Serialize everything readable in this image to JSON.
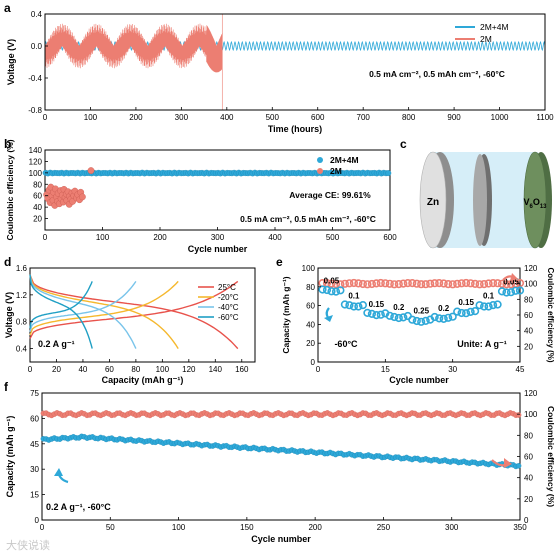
{
  "colors": {
    "blue": "#2ea8d8",
    "red": "#ec7e72",
    "c25": "#e8534c",
    "cm20": "#f5b82e",
    "cm40": "#79c4ea",
    "cm60": "#1f9fc4",
    "axis": "#000000",
    "cell_bg": "#d6eef8"
  },
  "panel_labels": {
    "a": "a",
    "b": "b",
    "c": "c",
    "d": "d",
    "e": "e",
    "f": "f"
  },
  "chart_data": [
    {
      "panel": "a",
      "type": "line",
      "xlabel": "Time (hours)",
      "ylabel": "Voltage (V)",
      "xlim": [
        0,
        1100
      ],
      "ylim": [
        -0.8,
        0.4
      ],
      "xticks": [
        0,
        100,
        200,
        300,
        400,
        500,
        600,
        700,
        800,
        900,
        1000,
        1100
      ],
      "yticks": [
        -0.8,
        -0.4,
        0.0,
        0.4
      ],
      "ytick_labels": [
        "-0.8",
        "-0.4",
        "0.0",
        "0.4"
      ],
      "annotation": "0.5 mA cm⁻², 0.5 mAh cm⁻², -60°C",
      "legend_position": "top-right",
      "series": [
        {
          "name": "2M+4M",
          "color": "#2ea8d8",
          "t_range": [
            0,
            1100
          ],
          "amplitude_V": 0.05,
          "period_hours": 8
        },
        {
          "name": "2M",
          "color": "#ec7e72",
          "t_range": [
            0,
            390
          ],
          "amplitude_V": 0.28,
          "period_hours": 3,
          "failure_hours": 390,
          "spike_peak_V": 0.3
        }
      ]
    },
    {
      "panel": "b",
      "type": "scatter",
      "xlabel": "Cycle number",
      "ylabel": "Coulombic efficiency (%)",
      "xlim": [
        0,
        600
      ],
      "ylim": [
        0,
        140
      ],
      "xticks": [
        0,
        100,
        200,
        300,
        400,
        500,
        600
      ],
      "yticks": [
        20,
        40,
        60,
        80,
        100,
        120,
        140
      ],
      "annotation_ce": "Average CE: 99.61%",
      "annotation_cond": "0.5 mA cm⁻², 0.5 mAh cm⁻², -60°C",
      "legend_position": "top-right",
      "series": [
        {
          "name": "2M+4M",
          "color": "#2ea8d8",
          "x_range": [
            1,
            600
          ],
          "ce_percent": 99.61
        },
        {
          "name": "2M",
          "color": "#ec7e72",
          "points": [
            [
              3,
              62
            ],
            [
              5,
              55
            ],
            [
              7,
              70
            ],
            [
              9,
              48
            ],
            [
              10,
              75
            ],
            [
              12,
              60
            ],
            [
              14,
              52
            ],
            [
              15,
              66
            ],
            [
              17,
              43
            ],
            [
              18,
              72
            ],
            [
              20,
              58
            ],
            [
              22,
              50
            ],
            [
              23,
              64
            ],
            [
              25,
              46
            ],
            [
              27,
              69
            ],
            [
              28,
              55
            ],
            [
              30,
              61
            ],
            [
              32,
              49
            ],
            [
              33,
              71
            ],
            [
              35,
              57
            ],
            [
              37,
              63
            ],
            [
              38,
              52
            ],
            [
              40,
              67
            ],
            [
              42,
              45
            ],
            [
              43,
              59
            ],
            [
              45,
              54
            ],
            [
              47,
              65
            ],
            [
              48,
              50
            ],
            [
              50,
              60
            ],
            [
              52,
              68
            ],
            [
              55,
              56
            ],
            [
              57,
              62
            ],
            [
              60,
              53
            ],
            [
              62,
              66
            ],
            [
              65,
              58
            ],
            [
              80,
              104
            ]
          ]
        }
      ]
    },
    {
      "panel": "c",
      "type": "schematic",
      "label_zn": "Zn",
      "label_vo_prefix": "V",
      "label_vo_sub1": "6",
      "label_vo_o": "O",
      "label_vo_sub2": "13"
    },
    {
      "panel": "d",
      "type": "line",
      "xlabel": "Capacity (mAh g⁻¹)",
      "ylabel": "Voltage (V)",
      "xlim": [
        0,
        170
      ],
      "ylim": [
        0.2,
        1.6
      ],
      "xticks": [
        0,
        20,
        40,
        60,
        80,
        100,
        120,
        140,
        160
      ],
      "yticks": [
        0.4,
        0.8,
        1.2,
        1.6
      ],
      "ytick_labels": [
        "0.4",
        "0.8",
        "1.2",
        "1.6"
      ],
      "annotation": "0.2 A g⁻¹",
      "legend_position": "top-right",
      "series": [
        {
          "name": "25°C",
          "color": "#e8534c",
          "capacity_mAh_g": 157
        },
        {
          "name": "-20°C",
          "color": "#f5b82e",
          "capacity_mAh_g": 112
        },
        {
          "name": "-40°C",
          "color": "#79c4ea",
          "capacity_mAh_g": 80
        },
        {
          "name": "-60°C",
          "color": "#1f9fc4",
          "capacity_mAh_g": 47
        }
      ]
    },
    {
      "panel": "e",
      "type": "scatter",
      "xlabel": "Cycle number",
      "ylabel": "Capacity (mAh g⁻¹)",
      "ylabel_right": "Coulombic efficiency (%)",
      "xlim": [
        0,
        45
      ],
      "ylim": [
        0,
        100
      ],
      "ylim_right": [
        0,
        120
      ],
      "xticks": [
        0,
        15,
        30,
        45
      ],
      "yticks": [
        0,
        20,
        40,
        60,
        80,
        100
      ],
      "yticks_right": [
        20,
        40,
        60,
        80,
        100,
        120
      ],
      "annotation_temp": "-60°C",
      "annotation_unit": "Unite: A g⁻¹",
      "rates": [
        {
          "label": "0.05",
          "cycles": [
            1,
            5
          ],
          "capacity": 76
        },
        {
          "label": "0.1",
          "cycles": [
            6,
            10
          ],
          "capacity": 60
        },
        {
          "label": "0.15",
          "cycles": [
            11,
            15
          ],
          "capacity": 51
        },
        {
          "label": "0.2",
          "cycles": [
            16,
            20
          ],
          "capacity": 48
        },
        {
          "label": "0.25",
          "cycles": [
            21,
            25
          ],
          "capacity": 44
        },
        {
          "label": "0.2",
          "cycles": [
            26,
            30
          ],
          "capacity": 47
        },
        {
          "label": "0.15",
          "cycles": [
            31,
            35
          ],
          "capacity": 53
        },
        {
          "label": "0.1",
          "cycles": [
            36,
            40
          ],
          "capacity": 60
        },
        {
          "label": "0.05",
          "cycles": [
            41,
            45
          ],
          "capacity": 75
        }
      ],
      "ce_percent": 100
    },
    {
      "panel": "f",
      "type": "scatter",
      "xlabel": "Cycle number",
      "ylabel": "Capacity (mAh g⁻¹)",
      "ylabel_right": "Coulombic efficiency (%)",
      "xlim": [
        0,
        350
      ],
      "ylim": [
        0,
        75
      ],
      "ylim_right": [
        0,
        120
      ],
      "xticks": [
        0,
        50,
        100,
        150,
        200,
        250,
        300,
        350
      ],
      "yticks": [
        0,
        15,
        30,
        45,
        60,
        75
      ],
      "yticks_right": [
        0,
        20,
        40,
        60,
        80,
        100,
        120
      ],
      "annotation": "0.2 A g⁻¹, -60°C",
      "capacity_start": 47.5,
      "capacity_peak": 49,
      "capacity_peak_cycle": 30,
      "capacity_end": 32,
      "ce_percent": 100
    }
  ],
  "watermark": "大侠说读"
}
